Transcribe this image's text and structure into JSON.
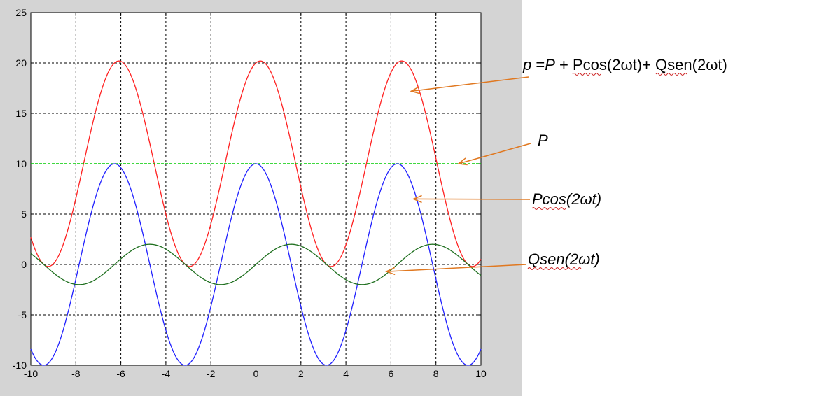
{
  "chart_data": {
    "type": "line",
    "title": "",
    "xlabel": "",
    "ylabel": "",
    "xlim": [
      -10,
      10
    ],
    "ylim": [
      -10,
      25
    ],
    "xticks": [
      -10,
      -8,
      -6,
      -4,
      -2,
      0,
      2,
      4,
      6,
      8,
      10
    ],
    "yticks": [
      -10,
      -5,
      0,
      5,
      10,
      15,
      20,
      25
    ],
    "grid": true,
    "series": [
      {
        "key": "p",
        "color": "#ff2020",
        "formula": "10 + 10*cos(x) + 2*sin(x)",
        "period_scale": 1.0,
        "x_range": [
          -10,
          10
        ],
        "amplitude": 10.2,
        "offset": 10
      },
      {
        "key": "P",
        "color": "#00cc00",
        "constant": 10,
        "dashed": true
      },
      {
        "key": "Pcos",
        "color": "#2020ff",
        "formula": "10*cos(x)"
      },
      {
        "key": "Qsen",
        "color": "#207020",
        "formula": "2*sin(x)"
      }
    ],
    "annotations": [
      {
        "key": "p",
        "parts": [
          "p",
          " =",
          "P",
          " + ",
          "Pcos",
          "(2ωt)+ ",
          "Qsen",
          "(2ωt)"
        ],
        "arrow_color": "#e07820",
        "target": [
          6.9,
          17.2
        ]
      },
      {
        "key": "P",
        "text": "P",
        "arrow_color": "#e07820",
        "target": [
          9.0,
          10.0
        ]
      },
      {
        "key": "Pcos",
        "text": "Pcos(2ωt)",
        "arrow_color": "#e07820",
        "target": [
          7.0,
          6.5
        ]
      },
      {
        "key": "Qsen",
        "text": "Qsen(2ωt)",
        "arrow_color": "#e07820",
        "target": [
          5.8,
          -0.7
        ]
      }
    ]
  }
}
